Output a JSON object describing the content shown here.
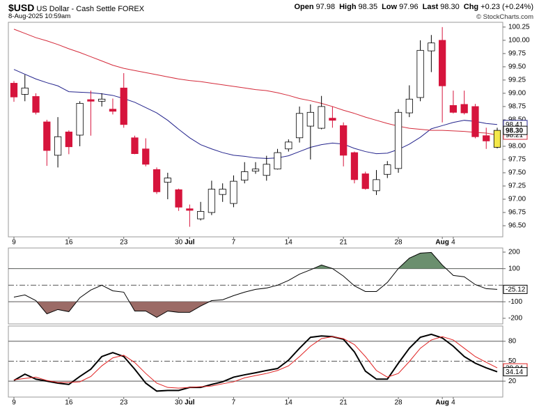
{
  "header": {
    "symbol": "$USD",
    "name": "US Dollar - Cash Settle",
    "exchange": "FOREX",
    "timestamp": "8-Aug-2025 10:59am",
    "quote": [
      {
        "label": "Open",
        "value": "97.98"
      },
      {
        "label": "High",
        "value": "98.35"
      },
      {
        "label": "Low",
        "value": "97.96"
      },
      {
        "label": "Last",
        "value": "98.30"
      },
      {
        "label": "Chg",
        "value": "+0.23 (+0.24%)"
      }
    ],
    "credit": "© StockCharts.com"
  },
  "chart_data": [
    {
      "type": "candlestick",
      "categories": [
        "9",
        null,
        null,
        null,
        null,
        "16",
        null,
        null,
        null,
        null,
        "23",
        null,
        null,
        null,
        null,
        "30",
        "Jul",
        null,
        null,
        null,
        "7",
        null,
        null,
        null,
        null,
        "14",
        null,
        null,
        null,
        null,
        "21",
        null,
        null,
        null,
        null,
        "28",
        null,
        null,
        null,
        "Aug",
        "4",
        null,
        null,
        null,
        null
      ],
      "open": [
        99.19,
        98.98,
        98.94,
        98.46,
        97.83,
        98.27,
        98.21,
        98.88,
        98.85,
        98.7,
        99.1,
        98.16,
        97.95,
        97.56,
        97.32,
        97.18,
        96.82,
        96.63,
        96.75,
        97.09,
        96.92,
        97.36,
        97.53,
        97.45,
        97.57,
        97.95,
        98.16,
        98.38,
        98.34,
        98.53,
        98.39,
        97.88,
        97.48,
        97.16,
        97.47,
        97.58,
        98.63,
        98.92,
        99.8,
        100,
        98.77,
        98.79,
        98.75,
        98.2,
        97.98
      ],
      "high": [
        99.23,
        99.35,
        99.0,
        98.5,
        98.55,
        98.3,
        98.85,
        99.05,
        99.0,
        98.9,
        99.38,
        98.2,
        98.15,
        97.6,
        97.5,
        97.2,
        96.9,
        96.95,
        97.35,
        97.3,
        97.45,
        97.7,
        97.7,
        97.82,
        97.95,
        98.13,
        98.75,
        98.79,
        98.95,
        98.75,
        98.45,
        97.9,
        97.52,
        97.55,
        97.72,
        98.7,
        99.15,
        100.0,
        100.1,
        100.25,
        99.05,
        99.05,
        98.8,
        98.35,
        98.35
      ],
      "low": [
        98.84,
        98.85,
        98.6,
        97.63,
        97.6,
        97.85,
        98.0,
        98.2,
        98.75,
        98.6,
        98.35,
        97.85,
        97.62,
        97.1,
        97.0,
        96.78,
        96.48,
        96.6,
        96.7,
        96.95,
        96.85,
        97.3,
        97.48,
        97.35,
        97.56,
        97.9,
        98.07,
        97.75,
        98.32,
        98.35,
        97.62,
        97.3,
        97.18,
        97.08,
        97.4,
        97.5,
        98.55,
        98.85,
        99.4,
        98.45,
        98.62,
        98.6,
        98.15,
        97.95,
        97.96
      ],
      "close": [
        98.93,
        99.1,
        98.64,
        97.92,
        98.18,
        97.99,
        98.81,
        98.85,
        98.89,
        98.66,
        98.41,
        97.86,
        97.66,
        97.14,
        97.4,
        96.85,
        96.79,
        96.77,
        97.19,
        97.19,
        97.34,
        97.52,
        97.57,
        97.66,
        97.88,
        98.08,
        98.62,
        98.64,
        98.75,
        98.49,
        97.83,
        97.37,
        97.2,
        97.37,
        97.65,
        98.64,
        98.89,
        99.81,
        99.95,
        99.14,
        98.64,
        98.63,
        98.18,
        98.1,
        98.3
      ],
      "value_labels": [
        null,
        null,
        null,
        null,
        null,
        null,
        null,
        null,
        null,
        null,
        null,
        null,
        null,
        null,
        null,
        null,
        null,
        null,
        null,
        null,
        null,
        null,
        null,
        null,
        null,
        null,
        null,
        null,
        null,
        null,
        null,
        null,
        null,
        null,
        null,
        null,
        null,
        null,
        null,
        null,
        null,
        null,
        null,
        null,
        "98.30"
      ],
      "up_color": "#ffffff",
      "down_color": "#d6143c",
      "highlight_color": "#f3e84a",
      "series": [
        {
          "color": "#23238c",
          "values": [
            99.45,
            99.36,
            99.27,
            99.2,
            99.14,
            99.03,
            99.02,
            99.01,
            98.99,
            98.96,
            98.9,
            98.83,
            98.73,
            98.63,
            98.49,
            98.32,
            98.16,
            98.03,
            97.95,
            97.88,
            97.83,
            97.81,
            97.78,
            97.77,
            97.78,
            97.82,
            97.9,
            97.98,
            98.03,
            98.06,
            98.04,
            97.96,
            97.9,
            97.86,
            97.87,
            97.94,
            98.04,
            98.17,
            98.33,
            98.39,
            98.45,
            98.49,
            98.47,
            98.43,
            98.41
          ]
        },
        {
          "color": "#d42a3a",
          "values": [
            100.21,
            100.13,
            100.05,
            99.99,
            99.92,
            99.84,
            99.77,
            99.69,
            99.61,
            99.53,
            99.47,
            99.43,
            99.39,
            99.35,
            99.31,
            99.27,
            99.24,
            99.22,
            99.19,
            99.16,
            99.13,
            99.1,
            99.07,
            99.05,
            99.01,
            98.96,
            98.9,
            98.86,
            98.81,
            98.75,
            98.68,
            98.62,
            98.55,
            98.49,
            98.43,
            98.38,
            98.34,
            98.32,
            98.3,
            98.3,
            98.29,
            98.28,
            98.26,
            98.25,
            98.21
          ]
        }
      ],
      "ylim": [
        96.29,
        100.34
      ],
      "yticks": [
        100.25,
        {
          "value": 100,
          "label": "100.00"
        },
        99.75,
        {
          "value": 99.5,
          "label": "99.50"
        },
        99.25,
        {
          "value": 99,
          "label": "99.00"
        },
        98.75,
        {
          "value": 98.5,
          "label": "98.50"
        },
        98.25,
        {
          "value": 98,
          "label": "98.00"
        },
        97.75,
        {
          "value": 97.5,
          "label": "97.50"
        },
        97.25,
        {
          "value": 97,
          "label": "97.00"
        },
        96.75,
        {
          "value": 96.5,
          "label": "96.50"
        }
      ]
    },
    {
      "type": "line",
      "series": [
        {
          "color": "#000000",
          "values": [
            -72,
            -59,
            -93,
            -173,
            -147,
            -160,
            -76,
            -29,
            0,
            -34,
            -42,
            -156,
            -156,
            -194,
            -156,
            -164,
            -164,
            -126,
            -93,
            -88,
            -63,
            -42,
            -25,
            -17,
            0,
            29,
            67,
            93,
            122,
            101,
            55,
            -4,
            -38,
            -38,
            17,
            101,
            164,
            194,
            198,
            122,
            59,
            51,
            4,
            -21,
            -25.12
          ]
        }
      ],
      "ylim": [
        -234,
        225
      ],
      "yticks": [
        200,
        100,
        -100,
        -200
      ],
      "hlines": [
        {
          "value": 100,
          "style": "solid"
        },
        {
          "value": 0,
          "style": "dashdot"
        },
        {
          "value": -100,
          "style": "solid"
        }
      ],
      "fill_above": {
        "value": 100,
        "color": "#6b8f6e"
      },
      "fill_below": {
        "value": -100,
        "color": "#9b6b66"
      }
    },
    {
      "type": "line",
      "categories": [
        "9",
        null,
        null,
        null,
        null,
        "16",
        null,
        null,
        null,
        null,
        "23",
        null,
        null,
        null,
        null,
        "30",
        "Jul",
        null,
        null,
        null,
        "7",
        null,
        null,
        null,
        null,
        "14",
        null,
        null,
        null,
        null,
        "21",
        null,
        null,
        null,
        null,
        "28",
        null,
        null,
        null,
        "Aug",
        "4",
        null,
        null,
        null,
        null
      ],
      "series": [
        {
          "color": "#000000",
          "width": 2,
          "values": [
            21,
            30.5,
            23,
            20,
            17,
            15,
            27,
            38,
            57,
            63,
            57,
            38,
            17,
            5,
            6,
            6,
            10.5,
            10.5,
            15,
            19,
            26,
            29.5,
            32.6,
            36,
            39,
            51.6,
            69.5,
            86,
            88,
            87,
            83,
            64,
            35,
            23,
            23,
            47,
            69.5,
            86,
            90.5,
            85,
            72.6,
            57,
            47,
            40,
            34.14
          ]
        },
        {
          "color": "#e02020",
          "width": 1,
          "values": [
            22,
            24,
            26,
            21,
            18,
            18,
            19,
            27,
            43,
            55,
            59,
            48,
            31.6,
            17,
            10.5,
            9.5,
            10.5,
            11.6,
            12.6,
            16,
            19,
            25,
            28.4,
            31.6,
            36,
            43,
            57,
            72.6,
            84,
            87,
            84,
            75,
            57,
            36,
            26,
            31.6,
            49.5,
            69.5,
            82,
            87,
            82,
            69.5,
            57,
            48.4,
            39.94
          ]
        }
      ],
      "ylim": [
        -4,
        103
      ],
      "yticks": [
        80,
        50,
        20
      ],
      "hlines": [
        {
          "value": 80,
          "style": "solid"
        },
        {
          "value": 50,
          "style": "dashdot"
        },
        {
          "value": 20,
          "style": "solid"
        }
      ]
    }
  ]
}
